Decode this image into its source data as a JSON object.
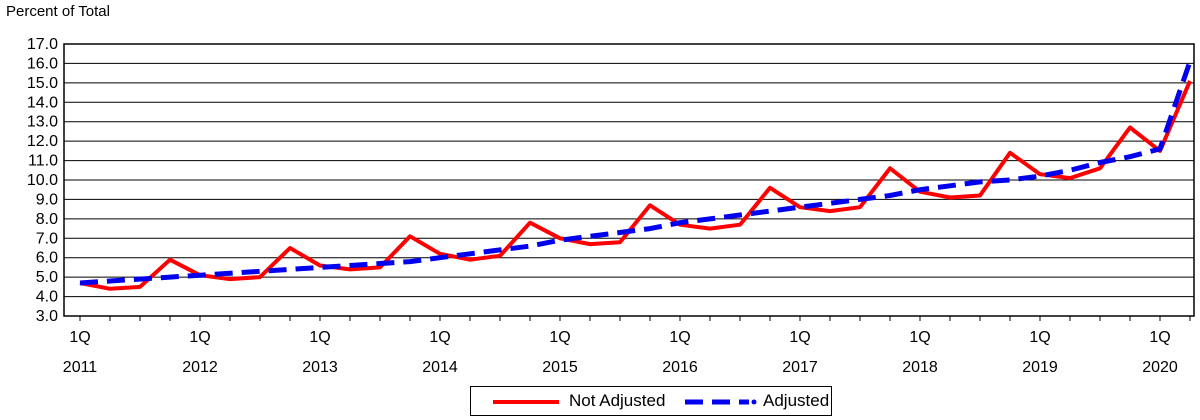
{
  "chart_data": {
    "type": "line",
    "ylabel": "Percent of Total",
    "ylim": [
      3.0,
      17.0
    ],
    "ytick_step": 1.0,
    "categories": [
      "1Q 2011",
      "2Q 2011",
      "3Q 2011",
      "4Q 2011",
      "1Q 2012",
      "2Q 2012",
      "3Q 2012",
      "4Q 2012",
      "1Q 2013",
      "2Q 2013",
      "3Q 2013",
      "4Q 2013",
      "1Q 2014",
      "2Q 2014",
      "3Q 2014",
      "4Q 2014",
      "1Q 2015",
      "2Q 2015",
      "3Q 2015",
      "4Q 2015",
      "1Q 2016",
      "2Q 2016",
      "3Q 2016",
      "4Q 2016",
      "1Q 2017",
      "2Q 2017",
      "3Q 2017",
      "4Q 2017",
      "1Q 2018",
      "2Q 2018",
      "3Q 2018",
      "4Q 2018",
      "1Q 2019",
      "2Q 2019",
      "3Q 2019",
      "4Q 2019",
      "1Q 2020",
      "2Q 2020"
    ],
    "x_tick_labels": [
      {
        "quarter": "1Q",
        "year": "2011"
      },
      {
        "quarter": "1Q",
        "year": "2012"
      },
      {
        "quarter": "1Q",
        "year": "2013"
      },
      {
        "quarter": "1Q",
        "year": "2014"
      },
      {
        "quarter": "1Q",
        "year": "2015"
      },
      {
        "quarter": "1Q",
        "year": "2016"
      },
      {
        "quarter": "1Q",
        "year": "2017"
      },
      {
        "quarter": "1Q",
        "year": "2018"
      },
      {
        "quarter": "1Q",
        "year": "2019"
      },
      {
        "quarter": "1Q",
        "year": "2020"
      }
    ],
    "series": [
      {
        "name": "Not Adjusted",
        "color": "#ff0000",
        "style": "solid",
        "values": [
          4.7,
          4.4,
          4.5,
          5.9,
          5.1,
          4.9,
          5.0,
          6.5,
          5.6,
          5.4,
          5.5,
          7.1,
          6.2,
          5.9,
          6.1,
          7.8,
          7.0,
          6.7,
          6.8,
          8.7,
          7.7,
          7.5,
          7.7,
          9.6,
          8.6,
          8.4,
          8.6,
          10.6,
          9.4,
          9.1,
          9.2,
          11.4,
          10.3,
          10.1,
          10.6,
          12.7,
          11.5,
          15.1
        ]
      },
      {
        "name": "Adjusted",
        "color": "#0000ee",
        "style": "dashed",
        "values": [
          4.7,
          4.8,
          4.9,
          5.0,
          5.1,
          5.2,
          5.3,
          5.4,
          5.5,
          5.6,
          5.7,
          5.8,
          6.0,
          6.2,
          6.4,
          6.6,
          6.9,
          7.1,
          7.3,
          7.5,
          7.8,
          8.0,
          8.2,
          8.4,
          8.6,
          8.8,
          9.0,
          9.2,
          9.5,
          9.7,
          9.9,
          10.0,
          10.2,
          10.5,
          10.9,
          11.2,
          11.6,
          16.1
        ]
      }
    ],
    "legend_position": "bottom-center"
  }
}
